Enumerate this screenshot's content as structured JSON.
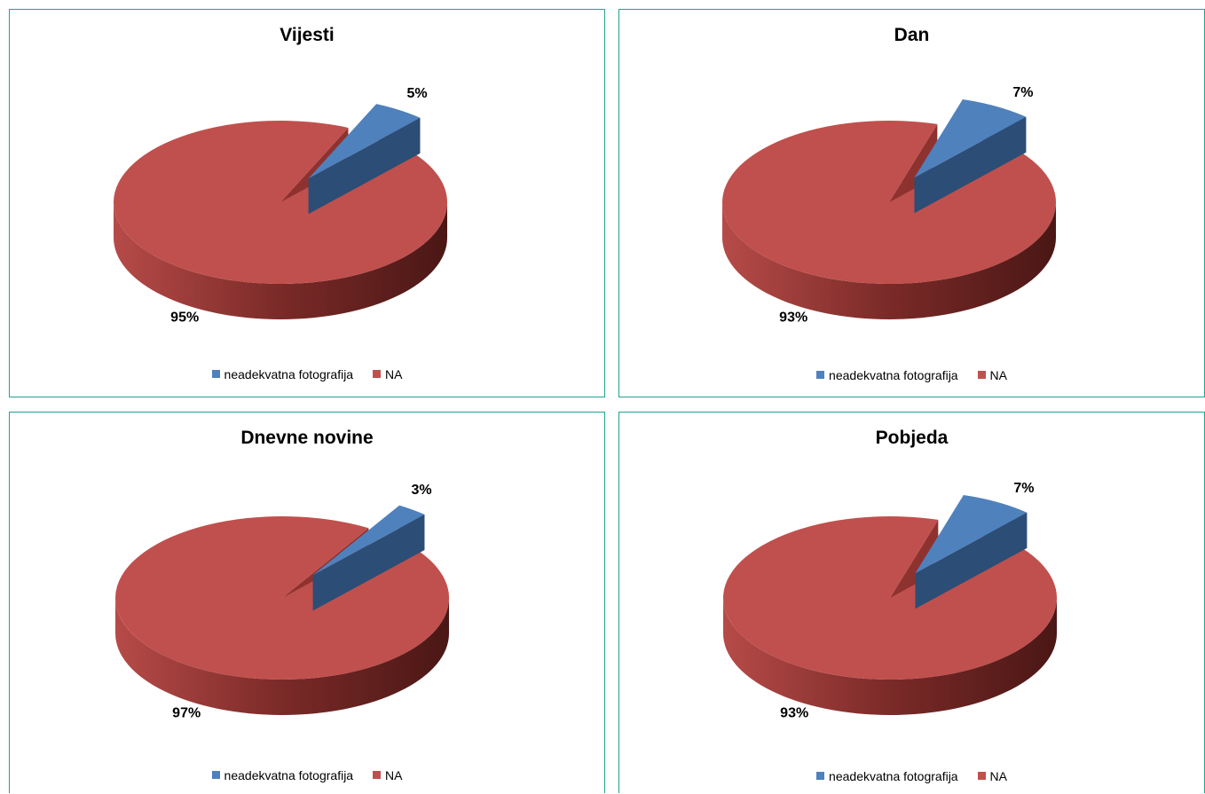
{
  "colors": {
    "blue_top": "#4f81bd",
    "blue_side": "#2c4d75",
    "red_top": "#c0504d",
    "red_side": "#7d2a28",
    "red_inner": "#8e3230",
    "border": "#1ea58e"
  },
  "chart_data": [
    {
      "type": "pie",
      "title": "Vijesti",
      "categories": [
        "neadekvatna fotografija",
        "NA"
      ],
      "values": [
        5,
        95
      ],
      "labels": [
        "5%",
        "95%"
      ],
      "legend_position": "bottom"
    },
    {
      "type": "pie",
      "title": "Dan",
      "categories": [
        "neadekvatna fotografija",
        "NA"
      ],
      "values": [
        7,
        93
      ],
      "labels": [
        "7%",
        "93%"
      ],
      "legend_position": "bottom"
    },
    {
      "type": "pie",
      "title": "Dnevne novine",
      "categories": [
        "neadekvatna fotografija",
        "NA"
      ],
      "values": [
        3,
        97
      ],
      "labels": [
        "3%",
        "97%"
      ],
      "legend_position": "bottom"
    },
    {
      "type": "pie",
      "title": "Pobjeda",
      "categories": [
        "neadekvatna fotografija",
        "NA"
      ],
      "values": [
        7,
        93
      ],
      "labels": [
        "7%",
        "93%"
      ],
      "legend_position": "bottom"
    }
  ]
}
